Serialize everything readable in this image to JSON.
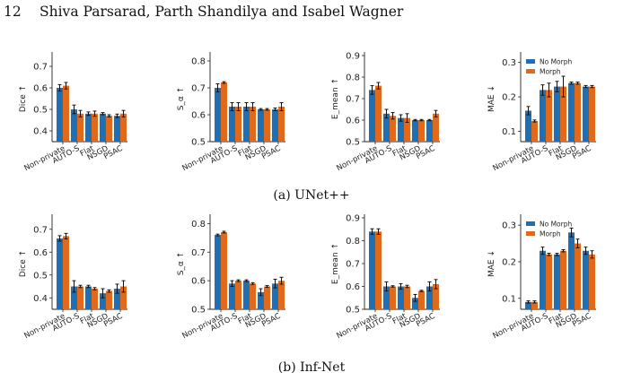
{
  "header": {
    "page_number": "12",
    "authors": "Shiva Parsarad, Parth Shandilya and Isabel Wagner"
  },
  "colors": {
    "no_morph": "#1f6fb2",
    "morph": "#e06a1b",
    "axis": "#222222"
  },
  "captions": [
    "(a) UNet++",
    "(b) Inf-Net"
  ],
  "legend_labels": [
    "No Morph",
    "Morph"
  ],
  "chart_data": [
    {
      "type": "bar",
      "panel": "a",
      "ylabel": "Dice ↑",
      "ylim": [
        0.35,
        0.75
      ],
      "yticks": [
        0.4,
        0.5,
        0.6,
        0.7
      ],
      "categories": [
        "Non-private",
        "AUTO-S",
        "Flat",
        "NSGD",
        "PSAC"
      ],
      "series": [
        {
          "name": "No Morph",
          "values": [
            0.6,
            0.5,
            0.48,
            0.48,
            0.47
          ],
          "errors": [
            0.015,
            0.02,
            0.008,
            0.005,
            0.008
          ]
        },
        {
          "name": "Morph",
          "values": [
            0.61,
            0.48,
            0.48,
            0.47,
            0.48
          ],
          "errors": [
            0.015,
            0.015,
            0.012,
            0.005,
            0.015
          ]
        }
      ]
    },
    {
      "type": "bar",
      "panel": "a",
      "ylabel": "S_α ↑",
      "ylim": [
        0.5,
        0.82
      ],
      "yticks": [
        0.5,
        0.6,
        0.7,
        0.8
      ],
      "categories": [
        "Non-private",
        "AUTO-S",
        "Flat",
        "NSGD",
        "PSAC"
      ],
      "series": [
        {
          "name": "No Morph",
          "values": [
            0.7,
            0.63,
            0.63,
            0.62,
            0.62
          ],
          "errors": [
            0.015,
            0.015,
            0.015,
            0.003,
            0.005
          ]
        },
        {
          "name": "Morph",
          "values": [
            0.72,
            0.63,
            0.63,
            0.62,
            0.63
          ],
          "errors": [
            0.003,
            0.015,
            0.015,
            0.003,
            0.015
          ]
        }
      ]
    },
    {
      "type": "bar",
      "panel": "a",
      "ylabel": "E_mean ↑",
      "ylim": [
        0.5,
        0.9
      ],
      "yticks": [
        0.5,
        0.6,
        0.7,
        0.8,
        0.9
      ],
      "categories": [
        "Non-private",
        "AUTO-S",
        "Flat",
        "NSGD",
        "PSAC"
      ],
      "series": [
        {
          "name": "No Morph",
          "values": [
            0.74,
            0.63,
            0.61,
            0.6,
            0.6
          ],
          "errors": [
            0.02,
            0.02,
            0.015,
            0.003,
            0.003
          ]
        },
        {
          "name": "Morph",
          "values": [
            0.76,
            0.62,
            0.61,
            0.6,
            0.63
          ],
          "errors": [
            0.015,
            0.015,
            0.02,
            0.003,
            0.015
          ]
        }
      ]
    },
    {
      "type": "bar",
      "panel": "a",
      "ylabel": "MAE ↓",
      "ylim": [
        0.07,
        0.32
      ],
      "yticks": [
        0.1,
        0.2,
        0.3
      ],
      "categories": [
        "Non-private",
        "AUTO-S",
        "Flat",
        "NSGD",
        "PSAC"
      ],
      "legend": "top-left",
      "series": [
        {
          "name": "No Morph",
          "values": [
            0.16,
            0.22,
            0.23,
            0.24,
            0.23
          ],
          "errors": [
            0.012,
            0.015,
            0.015,
            0.003,
            0.003
          ]
        },
        {
          "name": "Morph",
          "values": [
            0.13,
            0.22,
            0.23,
            0.24,
            0.23
          ],
          "errors": [
            0.003,
            0.02,
            0.03,
            0.003,
            0.003
          ]
        }
      ]
    },
    {
      "type": "bar",
      "panel": "b",
      "ylabel": "Dice ↑",
      "ylim": [
        0.35,
        0.75
      ],
      "yticks": [
        0.4,
        0.5,
        0.6,
        0.7
      ],
      "categories": [
        "Non-private",
        "AUTO-S",
        "Flat",
        "NSGD",
        "PSAC"
      ],
      "series": [
        {
          "name": "No Morph",
          "values": [
            0.66,
            0.45,
            0.45,
            0.42,
            0.44
          ],
          "errors": [
            0.012,
            0.025,
            0.005,
            0.02,
            0.02
          ]
        },
        {
          "name": "Morph",
          "values": [
            0.67,
            0.45,
            0.44,
            0.43,
            0.45
          ],
          "errors": [
            0.012,
            0.005,
            0.005,
            0.005,
            0.025
          ]
        }
      ]
    },
    {
      "type": "bar",
      "panel": "b",
      "ylabel": "S_α ↑",
      "ylim": [
        0.5,
        0.82
      ],
      "yticks": [
        0.5,
        0.6,
        0.7,
        0.8
      ],
      "categories": [
        "Non-private",
        "AUTO-S",
        "Flat",
        "NSGD",
        "PSAC"
      ],
      "series": [
        {
          "name": "No Morph",
          "values": [
            0.76,
            0.59,
            0.6,
            0.56,
            0.59
          ],
          "errors": [
            0.003,
            0.01,
            0.003,
            0.012,
            0.015
          ]
        },
        {
          "name": "Morph",
          "values": [
            0.77,
            0.6,
            0.59,
            0.58,
            0.6
          ],
          "errors": [
            0.003,
            0.003,
            0.003,
            0.003,
            0.012
          ]
        }
      ]
    },
    {
      "type": "bar",
      "panel": "b",
      "ylabel": "E_mean ↑",
      "ylim": [
        0.5,
        0.9
      ],
      "yticks": [
        0.5,
        0.6,
        0.7,
        0.8,
        0.9
      ],
      "categories": [
        "Non-private",
        "AUTO-S",
        "Flat",
        "NSGD",
        "PSAC"
      ],
      "series": [
        {
          "name": "No Morph",
          "values": [
            0.84,
            0.6,
            0.6,
            0.55,
            0.6
          ],
          "errors": [
            0.012,
            0.02,
            0.012,
            0.015,
            0.02
          ]
        },
        {
          "name": "Morph",
          "values": [
            0.84,
            0.6,
            0.6,
            0.58,
            0.61
          ],
          "errors": [
            0.012,
            0.003,
            0.005,
            0.003,
            0.02
          ]
        }
      ]
    },
    {
      "type": "bar",
      "panel": "b",
      "ylabel": "MAE ↓",
      "ylim": [
        0.07,
        0.32
      ],
      "yticks": [
        0.1,
        0.2,
        0.3
      ],
      "categories": [
        "Non-private",
        "AUTO-S",
        "Flat",
        "NSGD",
        "PSAC"
      ],
      "legend": "top-left",
      "series": [
        {
          "name": "No Morph",
          "values": [
            0.09,
            0.23,
            0.22,
            0.28,
            0.23
          ],
          "errors": [
            0.003,
            0.01,
            0.003,
            0.012,
            0.01
          ]
        },
        {
          "name": "Morph",
          "values": [
            0.09,
            0.22,
            0.23,
            0.25,
            0.22
          ],
          "errors": [
            0.003,
            0.003,
            0.003,
            0.012,
            0.01
          ]
        }
      ]
    }
  ]
}
